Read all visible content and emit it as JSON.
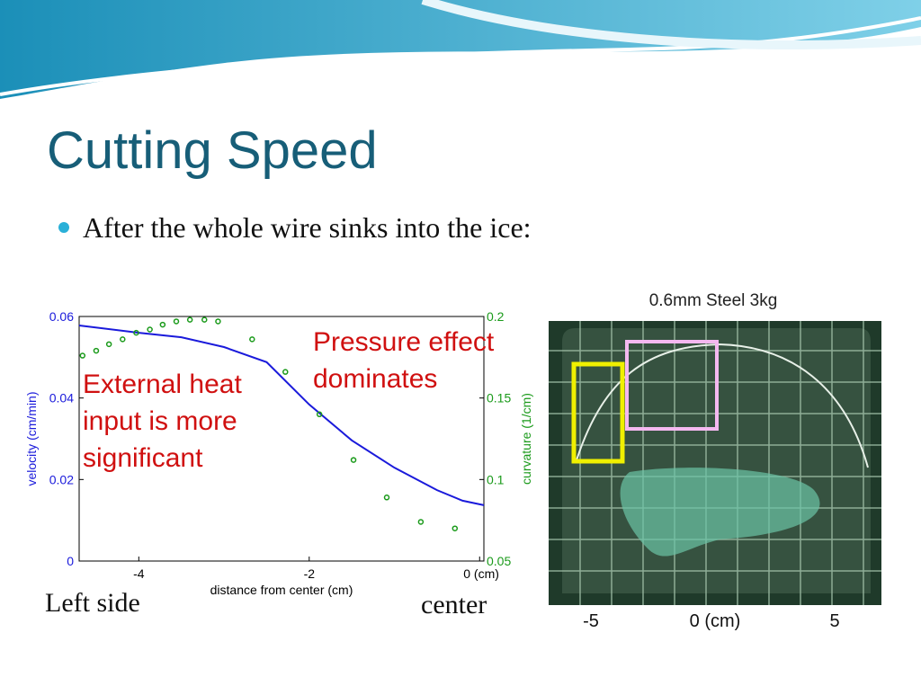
{
  "title": "Cutting Speed",
  "bullet": "After the whole wire sinks into the ice:",
  "chart_data": {
    "type": "line",
    "xlabel": "distance from center (cm)",
    "ylabel": "velocity (cm/min)",
    "y2label": "curvature (1/cm)",
    "xlim": [
      -4.7,
      0.05
    ],
    "xticks": [
      -4,
      -2,
      {
        "value": 0,
        "label": "0 (cm)"
      }
    ],
    "ylim": [
      0,
      0.06
    ],
    "yticks": [
      0,
      0.02,
      0.04,
      0.06
    ],
    "y2lim": [
      0.05,
      0.2
    ],
    "y2ticks": [
      0.05,
      0.1,
      0.15,
      0.2
    ],
    "series": [
      {
        "type": "line",
        "color": "#1a1adb",
        "x": [
          -4.7,
          -4,
          -3.5,
          -3,
          -2.5,
          -2,
          -1.5,
          -1,
          -0.5,
          -0.2,
          0.05
        ],
        "values": [
          0.0578,
          0.056,
          0.0549,
          0.0525,
          0.0488,
          0.0384,
          0.0296,
          0.0229,
          0.0174,
          0.0148,
          0.0137
        ]
      },
      {
        "type": "scatter",
        "axis": "y2",
        "color": "#1a9a1a",
        "x": [
          -4.66,
          -4.5,
          -4.35,
          -4.19,
          -4.03,
          -3.87,
          -3.72,
          -3.56,
          -3.4,
          -3.23,
          -3.07,
          -2.67,
          -2.28,
          -1.88,
          -1.48,
          -1.09,
          -0.69,
          -0.29
        ],
        "values": [
          0.176,
          0.179,
          0.183,
          0.186,
          0.19,
          0.192,
          0.195,
          0.197,
          0.198,
          0.198,
          0.197,
          0.186,
          0.166,
          0.14,
          0.112,
          0.089,
          0.074,
          0.07
        ]
      }
    ],
    "annotations": [
      {
        "lines": [
          "External heat",
          "input is more",
          "significant"
        ],
        "color": "#d01010"
      },
      {
        "lines": [
          "Pressure effect",
          "dominates"
        ],
        "color": "#d01010"
      }
    ]
  },
  "side_labels": [
    "Left side",
    "center"
  ],
  "photo": {
    "title": "0.6mm Steel 3kg",
    "axis_labels": [
      "-5",
      "0 (cm)",
      "5"
    ]
  }
}
